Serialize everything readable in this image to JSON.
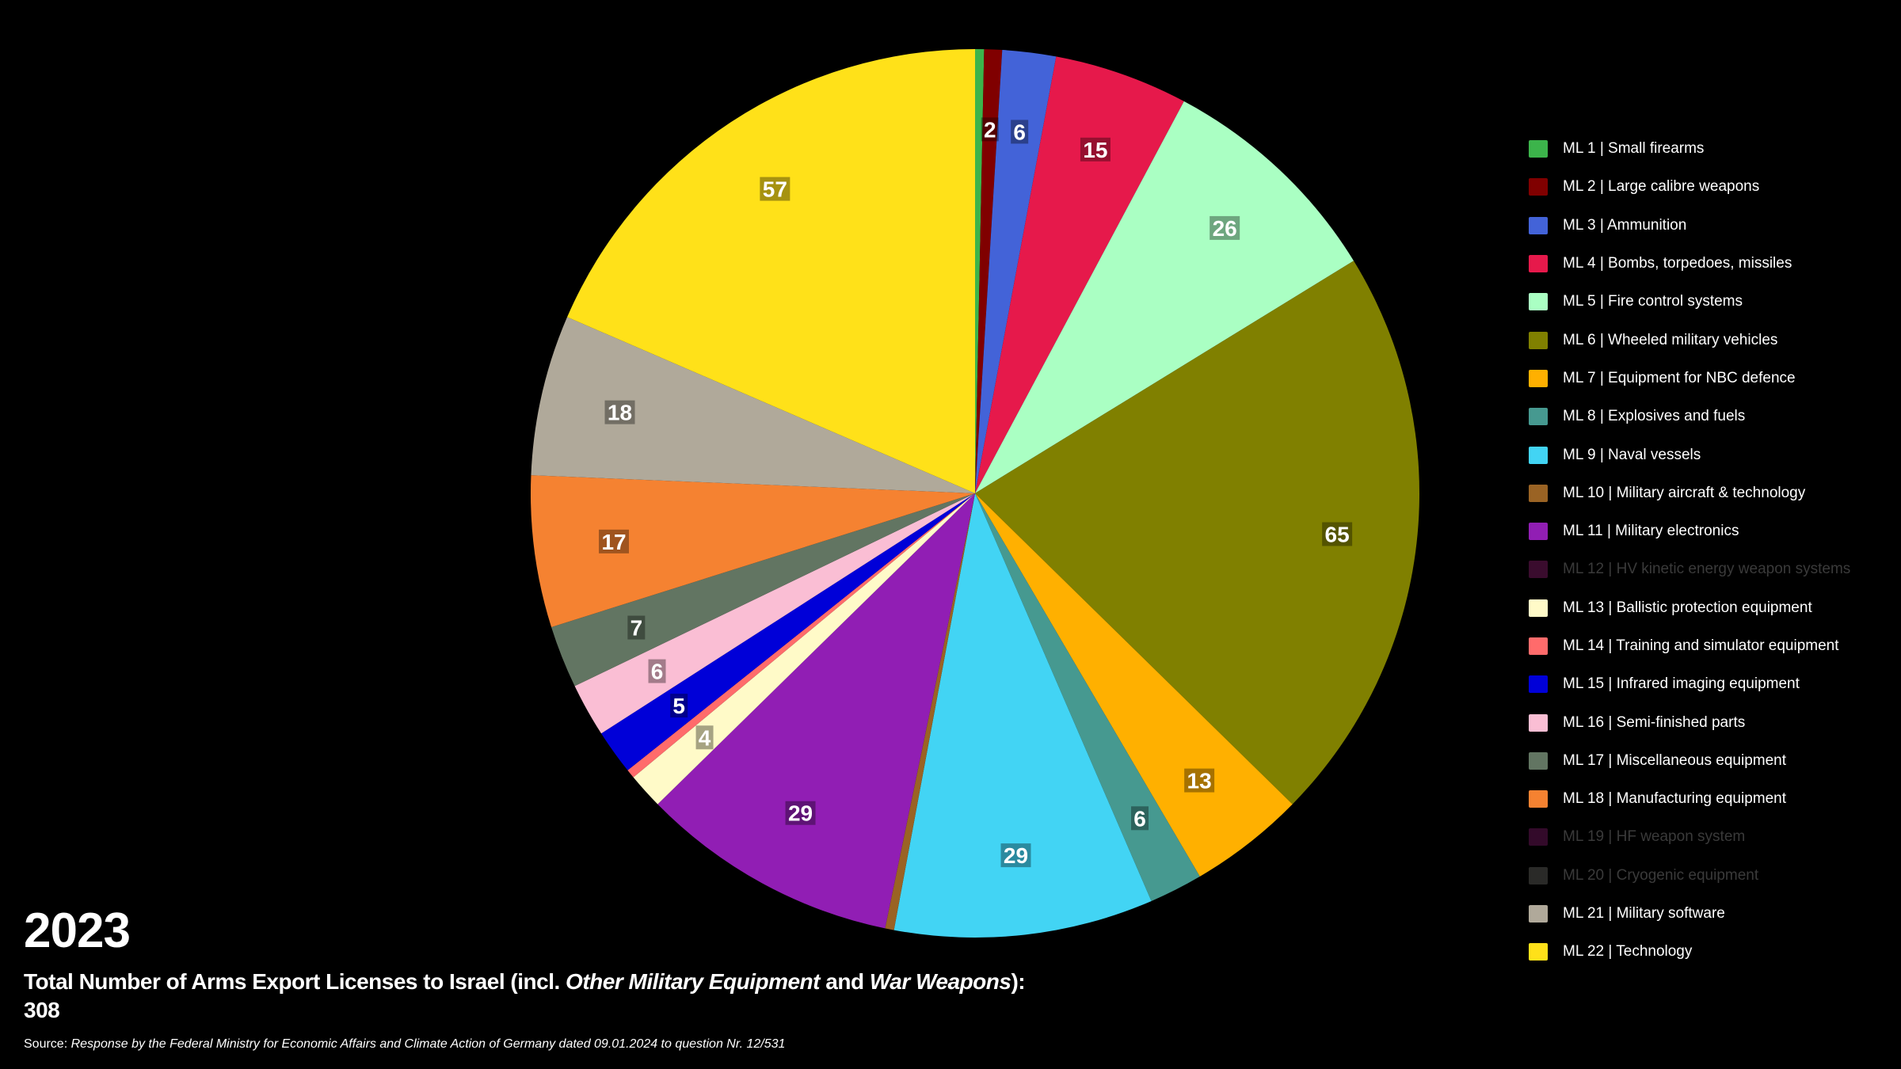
{
  "chart_data": {
    "type": "pie",
    "year_label": "2023",
    "title_parts": [
      "Total Number of Arms Export Licenses to Israel (incl. ",
      "Other Military Equipment",
      " and ",
      "War Weapons",
      "):"
    ],
    "total": "308",
    "source_prefix": "Source: ",
    "source_text": "Response by the Federal Ministry for Economic Affairs and Climate Action of Germany dated 09.01.2024 to question Nr. 12/531",
    "start_angle_deg": 0,
    "direction": "clockwise",
    "legend_position": "right",
    "slices": [
      {
        "label": "ML 1 | Small firearms",
        "value": 1,
        "color": "#3cb44b"
      },
      {
        "label": "ML 2 | Large calibre weapons",
        "value": 2,
        "color": "#800000"
      },
      {
        "label": "ML 3 | Ammunition",
        "value": 6,
        "color": "#4363d8"
      },
      {
        "label": "ML 4 | Bombs, torpedoes, missiles",
        "value": 15,
        "color": "#e6194b"
      },
      {
        "label": "ML 5 | Fire control systems",
        "value": 26,
        "color": "#aaffc3"
      },
      {
        "label": "ML 6 | Wheeled military vehicles",
        "value": 65,
        "color": "#808000"
      },
      {
        "label": "ML 7 | Equipment for NBC defence",
        "value": 13,
        "color": "#ffb000"
      },
      {
        "label": "ML 8 | Explosives and fuels",
        "value": 6,
        "color": "#469990"
      },
      {
        "label": "ML 9 | Naval vessels",
        "value": 29,
        "color": "#42d4f4"
      },
      {
        "label": "ML 10 | Military aircraft & technology",
        "value": 1,
        "color": "#9a6324"
      },
      {
        "label": "ML 11 | Military electronics",
        "value": 29,
        "color": "#911eb4"
      },
      {
        "label": "ML 12 | HV kinetic energy weapon systems",
        "value": 0,
        "color": "#3a0c2e"
      },
      {
        "label": "ML 13 | Ballistic protection equipment",
        "value": 4,
        "color": "#fffac8"
      },
      {
        "label": "ML 14 | Training and simulator equipment",
        "value": 1,
        "color": "#ff6b6b"
      },
      {
        "label": "ML 15 | Infrared imaging equipment",
        "value": 5,
        "color": "#0000d8"
      },
      {
        "label": "ML 16 | Semi-finished parts",
        "value": 6,
        "color": "#fabed4"
      },
      {
        "label": "ML 17 | Miscellaneous equipment",
        "value": 7,
        "color": "#627562"
      },
      {
        "label": "ML 18 | Manufacturing equipment",
        "value": 17,
        "color": "#f58231"
      },
      {
        "label": "ML 19 | HF weapon system",
        "value": 0,
        "color": "#330a2a"
      },
      {
        "label": "ML 20 | Cryogenic equipment",
        "value": 0,
        "color": "#2a2a28"
      },
      {
        "label": "ML 21 | Military software",
        "value": 18,
        "color": "#b0a99a"
      },
      {
        "label": "ML 22 | Technology",
        "value": 57,
        "color": "#ffe119"
      }
    ]
  }
}
